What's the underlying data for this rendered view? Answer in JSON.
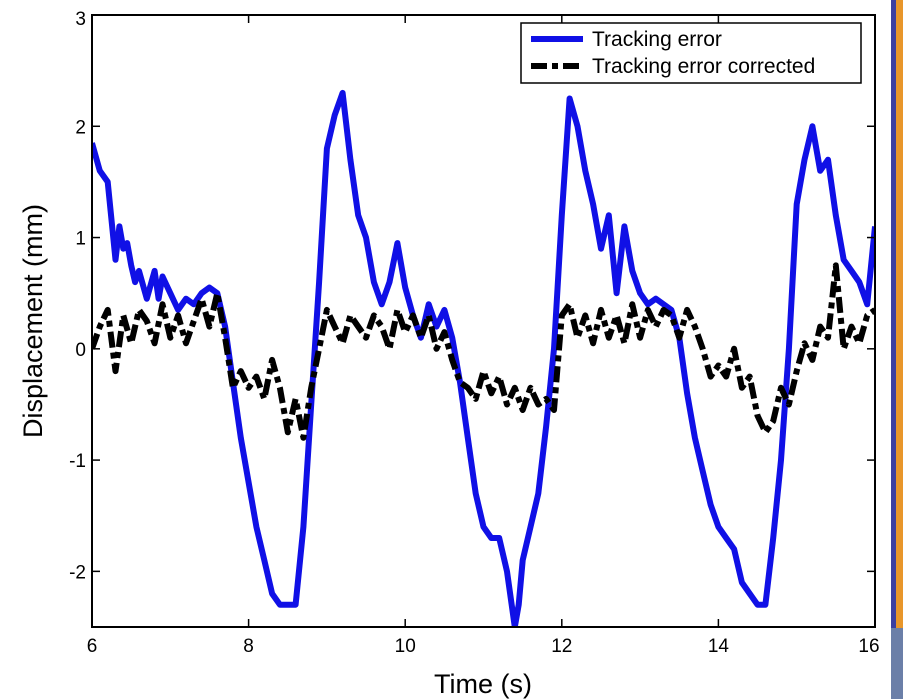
{
  "chart_data": {
    "type": "line",
    "xlabel": "Time (s)",
    "ylabel": "Displacement (mm)",
    "xlim": [
      6,
      16
    ],
    "ylim": [
      -2.5,
      3
    ],
    "xticks": [
      6,
      8,
      10,
      12,
      14,
      16
    ],
    "yticks": [
      -2,
      -1,
      0,
      1,
      2,
      3
    ],
    "grid": false,
    "legend_position": "top-right",
    "series": [
      {
        "name": "Tracking error",
        "color": "#1010e6",
        "style": "solid",
        "x": [
          6.0,
          6.1,
          6.2,
          6.3,
          6.35,
          6.4,
          6.45,
          6.5,
          6.55,
          6.6,
          6.7,
          6.8,
          6.85,
          6.9,
          7.0,
          7.1,
          7.2,
          7.3,
          7.4,
          7.5,
          7.6,
          7.7,
          7.8,
          7.9,
          8.0,
          8.1,
          8.2,
          8.3,
          8.4,
          8.5,
          8.6,
          8.7,
          8.8,
          8.9,
          9.0,
          9.1,
          9.2,
          9.3,
          9.4,
          9.5,
          9.6,
          9.7,
          9.8,
          9.9,
          10.0,
          10.1,
          10.2,
          10.3,
          10.4,
          10.5,
          10.6,
          10.7,
          10.8,
          10.9,
          11.0,
          11.1,
          11.2,
          11.3,
          11.4,
          11.45,
          11.5,
          11.6,
          11.7,
          11.8,
          11.9,
          12.0,
          12.1,
          12.2,
          12.3,
          12.4,
          12.5,
          12.6,
          12.7,
          12.8,
          12.9,
          13.0,
          13.1,
          13.2,
          13.3,
          13.4,
          13.5,
          13.6,
          13.7,
          13.8,
          13.9,
          14.0,
          14.1,
          14.2,
          14.3,
          14.4,
          14.5,
          14.6,
          14.7,
          14.8,
          14.9,
          15.0,
          15.1,
          15.2,
          15.3,
          15.4,
          15.5,
          15.6,
          15.7,
          15.8,
          15.9,
          16.0
        ],
        "y": [
          1.85,
          1.6,
          1.5,
          0.8,
          1.1,
          0.9,
          0.95,
          0.75,
          0.6,
          0.7,
          0.45,
          0.7,
          0.45,
          0.65,
          0.5,
          0.35,
          0.45,
          0.4,
          0.5,
          0.55,
          0.5,
          0.2,
          -0.3,
          -0.8,
          -1.2,
          -1.6,
          -1.9,
          -2.2,
          -2.3,
          -2.3,
          -2.3,
          -1.6,
          -0.5,
          0.6,
          1.8,
          2.1,
          2.3,
          1.7,
          1.2,
          1.0,
          0.6,
          0.4,
          0.6,
          0.95,
          0.55,
          0.3,
          0.1,
          0.4,
          0.2,
          0.35,
          0.1,
          -0.3,
          -0.8,
          -1.3,
          -1.6,
          -1.7,
          -1.7,
          -2.0,
          -2.5,
          -2.3,
          -1.9,
          -1.6,
          -1.3,
          -0.7,
          0.0,
          1.2,
          2.25,
          2.0,
          1.6,
          1.3,
          0.9,
          1.2,
          0.5,
          1.1,
          0.7,
          0.5,
          0.4,
          0.45,
          0.4,
          0.35,
          0.1,
          -0.4,
          -0.8,
          -1.1,
          -1.4,
          -1.6,
          -1.7,
          -1.8,
          -2.1,
          -2.2,
          -2.3,
          -2.3,
          -1.7,
          -1.0,
          0.0,
          1.3,
          1.7,
          2.0,
          1.6,
          1.7,
          1.2,
          0.8,
          0.7,
          0.6,
          0.4,
          1.1
        ]
      },
      {
        "name": "Tracking error corrected",
        "color": "#000000",
        "style": "dashdot",
        "x": [
          6.0,
          6.1,
          6.2,
          6.3,
          6.4,
          6.5,
          6.6,
          6.7,
          6.8,
          6.9,
          7.0,
          7.1,
          7.2,
          7.3,
          7.4,
          7.5,
          7.6,
          7.7,
          7.8,
          7.9,
          8.0,
          8.1,
          8.2,
          8.3,
          8.4,
          8.5,
          8.6,
          8.7,
          8.8,
          8.9,
          9.0,
          9.1,
          9.2,
          9.3,
          9.4,
          9.5,
          9.6,
          9.7,
          9.8,
          9.9,
          10.0,
          10.1,
          10.2,
          10.3,
          10.4,
          10.5,
          10.6,
          10.7,
          10.8,
          10.9,
          11.0,
          11.1,
          11.2,
          11.3,
          11.4,
          11.5,
          11.6,
          11.7,
          11.8,
          11.9,
          12.0,
          12.1,
          12.2,
          12.3,
          12.4,
          12.5,
          12.6,
          12.7,
          12.8,
          12.9,
          13.0,
          13.1,
          13.2,
          13.3,
          13.4,
          13.5,
          13.6,
          13.7,
          13.8,
          13.9,
          14.0,
          14.1,
          14.2,
          14.3,
          14.4,
          14.5,
          14.6,
          14.7,
          14.8,
          14.9,
          15.0,
          15.1,
          15.2,
          15.3,
          15.4,
          15.5,
          15.6,
          15.7,
          15.8,
          15.9,
          16.0
        ],
        "y": [
          0.0,
          0.2,
          0.35,
          -0.2,
          0.3,
          0.05,
          0.35,
          0.25,
          0.05,
          0.4,
          0.1,
          0.3,
          0.05,
          0.25,
          0.45,
          0.2,
          0.5,
          0.1,
          -0.35,
          -0.2,
          -0.35,
          -0.25,
          -0.45,
          -0.1,
          -0.35,
          -0.75,
          -0.45,
          -0.8,
          -0.35,
          0.0,
          0.35,
          0.2,
          0.05,
          0.3,
          0.2,
          0.1,
          0.3,
          0.2,
          0.0,
          0.35,
          0.15,
          0.3,
          0.1,
          0.3,
          0.0,
          0.15,
          -0.1,
          -0.3,
          -0.35,
          -0.45,
          -0.2,
          -0.4,
          -0.25,
          -0.5,
          -0.35,
          -0.55,
          -0.35,
          -0.5,
          -0.45,
          -0.55,
          0.3,
          0.4,
          0.1,
          0.3,
          0.05,
          0.35,
          0.1,
          0.3,
          0.05,
          0.4,
          0.1,
          0.35,
          0.2,
          0.35,
          0.3,
          0.1,
          0.35,
          0.2,
          0.0,
          -0.25,
          -0.15,
          -0.25,
          0.0,
          -0.35,
          -0.25,
          -0.6,
          -0.75,
          -0.65,
          -0.35,
          -0.5,
          -0.2,
          0.05,
          -0.1,
          0.2,
          0.1,
          0.75,
          0.0,
          0.2,
          0.05,
          0.3,
          0.35
        ]
      }
    ]
  }
}
